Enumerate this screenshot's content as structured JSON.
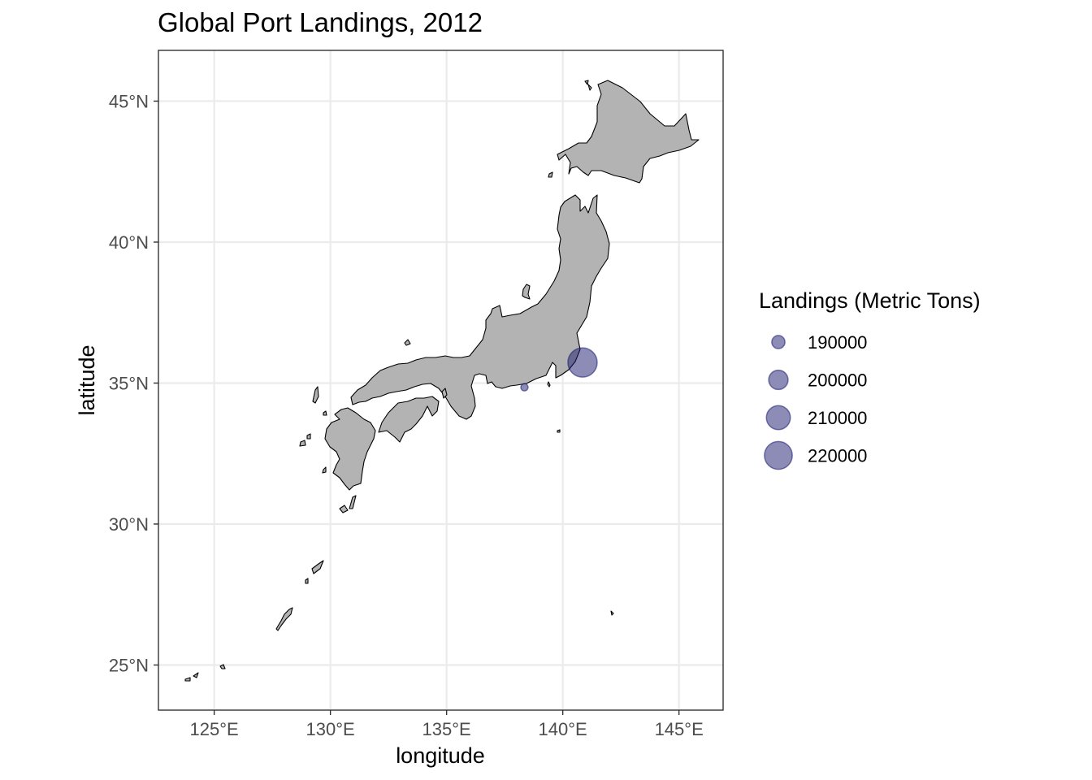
{
  "map": {
    "title": "Global Port Landings, 2012",
    "x_axis": {
      "title": "longitude",
      "range": [
        122.6,
        146.9
      ],
      "ticks": [
        {
          "value": 125,
          "label": "125°E"
        },
        {
          "value": 130,
          "label": "130°E"
        },
        {
          "value": 135,
          "label": "135°E"
        },
        {
          "value": 140,
          "label": "140°E"
        },
        {
          "value": 145,
          "label": "145°E"
        }
      ]
    },
    "y_axis": {
      "title": "latitude",
      "range": [
        23.4,
        46.8
      ],
      "ticks": [
        {
          "value": 25,
          "label": "25°N"
        },
        {
          "value": 30,
          "label": "30°N"
        },
        {
          "value": 35,
          "label": "35°N"
        },
        {
          "value": 40,
          "label": "40°N"
        },
        {
          "value": 45,
          "label": "45°N"
        }
      ]
    },
    "grid": true,
    "land_color": "#b3b3b3",
    "point_color": "#191970",
    "point_opacity": 0.5,
    "ports": [
      {
        "lon": 140.85,
        "lat": 35.73,
        "landings": 224000
      },
      {
        "lon": 138.35,
        "lat": 34.85,
        "landings": 184000
      }
    ],
    "legend": {
      "title": "Landings (Metric Tons)",
      "placement": "right",
      "entries": [
        {
          "value": 190000,
          "label": "190000"
        },
        {
          "value": 200000,
          "label": "200000"
        },
        {
          "value": 210000,
          "label": "210000"
        },
        {
          "value": 220000,
          "label": "220000"
        }
      ]
    }
  }
}
